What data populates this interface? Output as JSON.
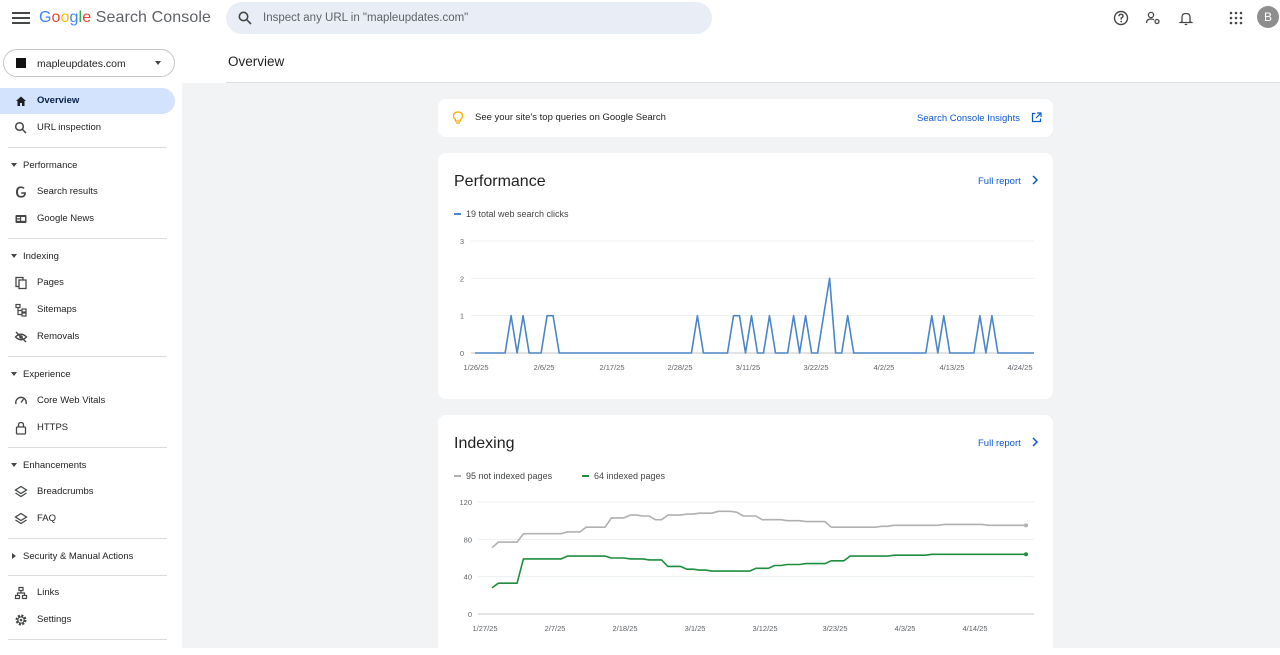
{
  "app": {
    "logo_google": [
      "G",
      "o",
      "o",
      "g",
      "l",
      "e"
    ],
    "logo_suffix": "Search Console",
    "search_placeholder": "Inspect any URL in \"mapleupdates.com\"",
    "avatar_letter": "B"
  },
  "sidebar": {
    "property": "mapleupdates.com",
    "items": {
      "overview": "Overview",
      "url_inspection": "URL inspection",
      "performance": "Performance",
      "search_results": "Search results",
      "google_news": "Google News",
      "indexing": "Indexing",
      "pages": "Pages",
      "sitemaps": "Sitemaps",
      "removals": "Removals",
      "experience": "Experience",
      "core_web_vitals": "Core Web Vitals",
      "https": "HTTPS",
      "enhancements": "Enhancements",
      "breadcrumbs": "Breadcrumbs",
      "faq": "FAQ",
      "security": "Security & Manual Actions",
      "links": "Links",
      "settings": "Settings"
    }
  },
  "page": {
    "title": "Overview",
    "insight_text": "See your site's top queries on Google Search",
    "insight_link": "Search Console Insights",
    "performance_title": "Performance",
    "indexing_title": "Indexing",
    "full_report": "Full report"
  },
  "colors": {
    "clicks": "#4a86c8",
    "not_indexed": "#b0b0b0",
    "indexed": "#1e8e3e"
  },
  "chart_data": [
    {
      "type": "line",
      "legend": [
        "19 total web search clicks"
      ],
      "ylim": [
        0,
        3
      ],
      "yticks": [
        0,
        1,
        2,
        3
      ],
      "xtick_labels": [
        "1/26/25",
        "2/6/25",
        "2/17/25",
        "2/28/25",
        "3/11/25",
        "3/22/25",
        "4/2/25",
        "4/13/25",
        "4/24/25"
      ],
      "series": [
        {
          "name": "19 total web search clicks",
          "values": [
            0,
            0,
            0,
            0,
            0,
            0,
            1,
            0,
            1,
            0,
            0,
            0,
            1,
            1,
            0,
            0,
            0,
            0,
            0,
            0,
            0,
            0,
            0,
            0,
            0,
            0,
            0,
            0,
            0,
            0,
            0,
            0,
            0,
            0,
            0,
            0,
            0,
            1,
            0,
            0,
            0,
            0,
            0,
            1,
            1,
            0,
            1,
            0,
            0,
            1,
            0,
            0,
            0,
            1,
            0,
            1,
            0,
            0,
            1,
            2,
            0,
            0,
            1,
            0,
            0,
            0,
            0,
            0,
            0,
            0,
            0,
            0,
            0,
            0,
            0,
            0,
            1,
            0,
            1,
            0,
            0,
            0,
            0,
            0,
            1,
            0,
            1,
            0,
            0,
            0,
            0,
            0,
            0,
            0
          ]
        }
      ]
    },
    {
      "type": "line",
      "legend": [
        "95 not indexed pages",
        "64 indexed pages"
      ],
      "ylim": [
        0,
        120
      ],
      "yticks": [
        0,
        40,
        80,
        120
      ],
      "xtick_labels": [
        "1/27/25",
        "2/7/25",
        "2/18/25",
        "3/1/25",
        "3/12/25",
        "3/23/25",
        "4/3/25",
        "4/14/25"
      ],
      "series": [
        {
          "name": "95 not indexed pages",
          "values": [
            71,
            77,
            77,
            77,
            77,
            86,
            86,
            86,
            86,
            86,
            86,
            86,
            88,
            88,
            88,
            93,
            93,
            93,
            93,
            103,
            103,
            103,
            106,
            106,
            105,
            105,
            101,
            101,
            106,
            106,
            106,
            107,
            107,
            108,
            108,
            108,
            110,
            110,
            110,
            109,
            105,
            105,
            105,
            101,
            101,
            101,
            101,
            100,
            100,
            100,
            99,
            99,
            99,
            99,
            93,
            93,
            93,
            93,
            93,
            93,
            93,
            93,
            94,
            94,
            95,
            95,
            95,
            95,
            95,
            95,
            95,
            95,
            96,
            96,
            96,
            96,
            96,
            96,
            96,
            95,
            95,
            95,
            95,
            95,
            95,
            95
          ]
        },
        {
          "name": "64 indexed pages",
          "values": [
            28,
            33,
            33,
            33,
            33,
            59,
            59,
            59,
            59,
            59,
            59,
            59,
            62,
            62,
            62,
            62,
            62,
            62,
            62,
            60,
            60,
            60,
            59,
            59,
            59,
            58,
            58,
            58,
            51,
            51,
            51,
            48,
            48,
            47,
            47,
            46,
            46,
            46,
            46,
            46,
            46,
            46,
            49,
            49,
            49,
            52,
            52,
            53,
            53,
            53,
            54,
            54,
            54,
            54,
            57,
            57,
            57,
            62,
            62,
            62,
            62,
            62,
            62,
            62,
            63,
            63,
            63,
            63,
            63,
            63,
            64,
            64,
            64,
            64,
            64,
            64,
            64,
            64,
            64,
            64,
            64,
            64,
            64,
            64,
            64,
            64
          ]
        }
      ]
    }
  ]
}
